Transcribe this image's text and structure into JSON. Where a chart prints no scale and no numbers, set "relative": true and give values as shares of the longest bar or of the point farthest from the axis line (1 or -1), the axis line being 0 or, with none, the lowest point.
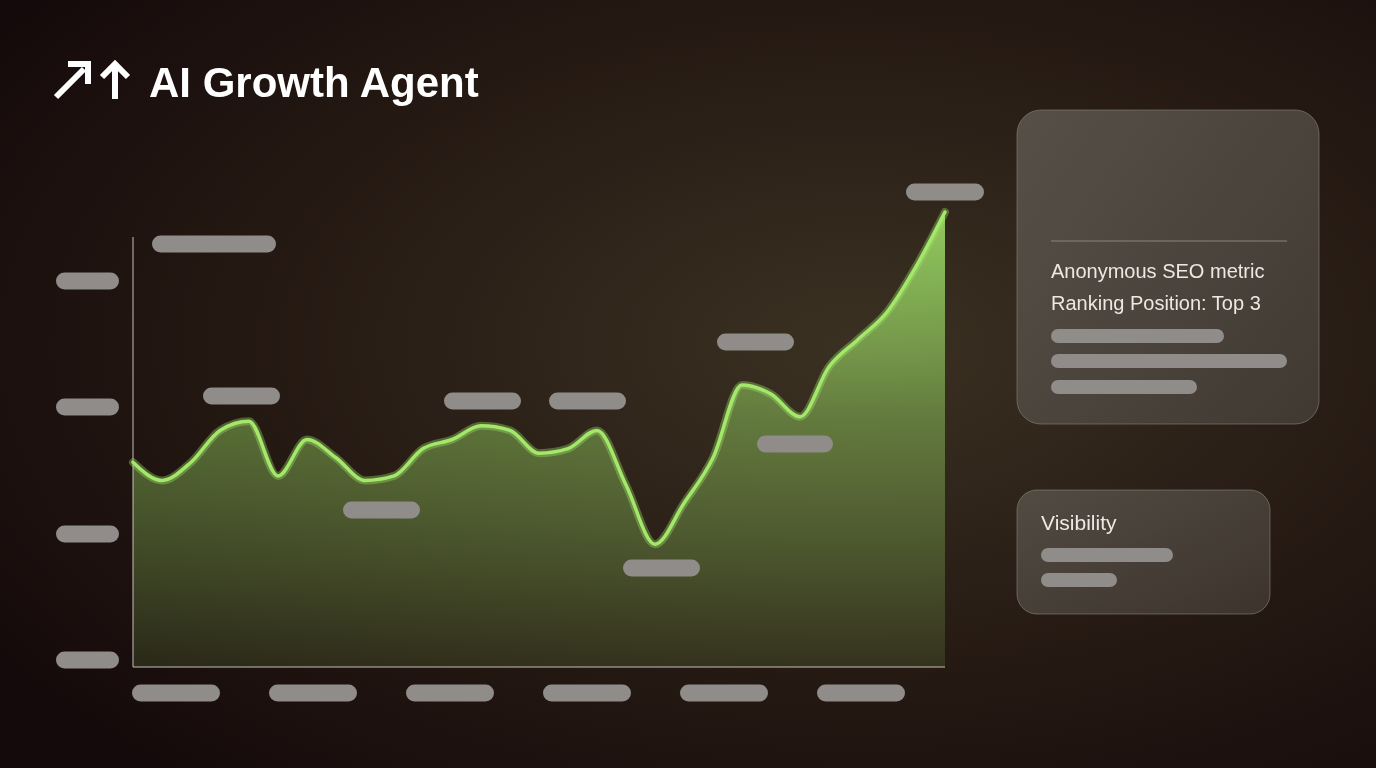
{
  "chart_data": {
    "type": "area",
    "title": "AI Growth Agent",
    "relative": true,
    "categories": [
      null,
      null,
      null,
      null,
      null,
      null,
      null,
      null,
      null,
      null,
      null,
      null,
      null,
      null,
      null,
      null,
      null,
      null,
      null,
      null,
      null,
      null,
      null,
      null,
      null,
      null,
      null,
      null,
      null
    ],
    "series": [
      {
        "color": "#a3e86a",
        "values": [
          0.45,
          0.41,
          0.45,
          0.52,
          0.54,
          0.42,
          0.5,
          0.46,
          0.41,
          0.42,
          0.48,
          0.5,
          0.53,
          0.52,
          0.47,
          0.48,
          0.52,
          0.4,
          0.27,
          0.36,
          0.46,
          0.62,
          0.6,
          0.55,
          0.66,
          0.72,
          0.78,
          0.88,
          1.0
        ]
      }
    ],
    "annotations": [
      "Anonymous SEO metric",
      "Ranking Position: Top 3",
      "Visibility"
    ]
  }
}
